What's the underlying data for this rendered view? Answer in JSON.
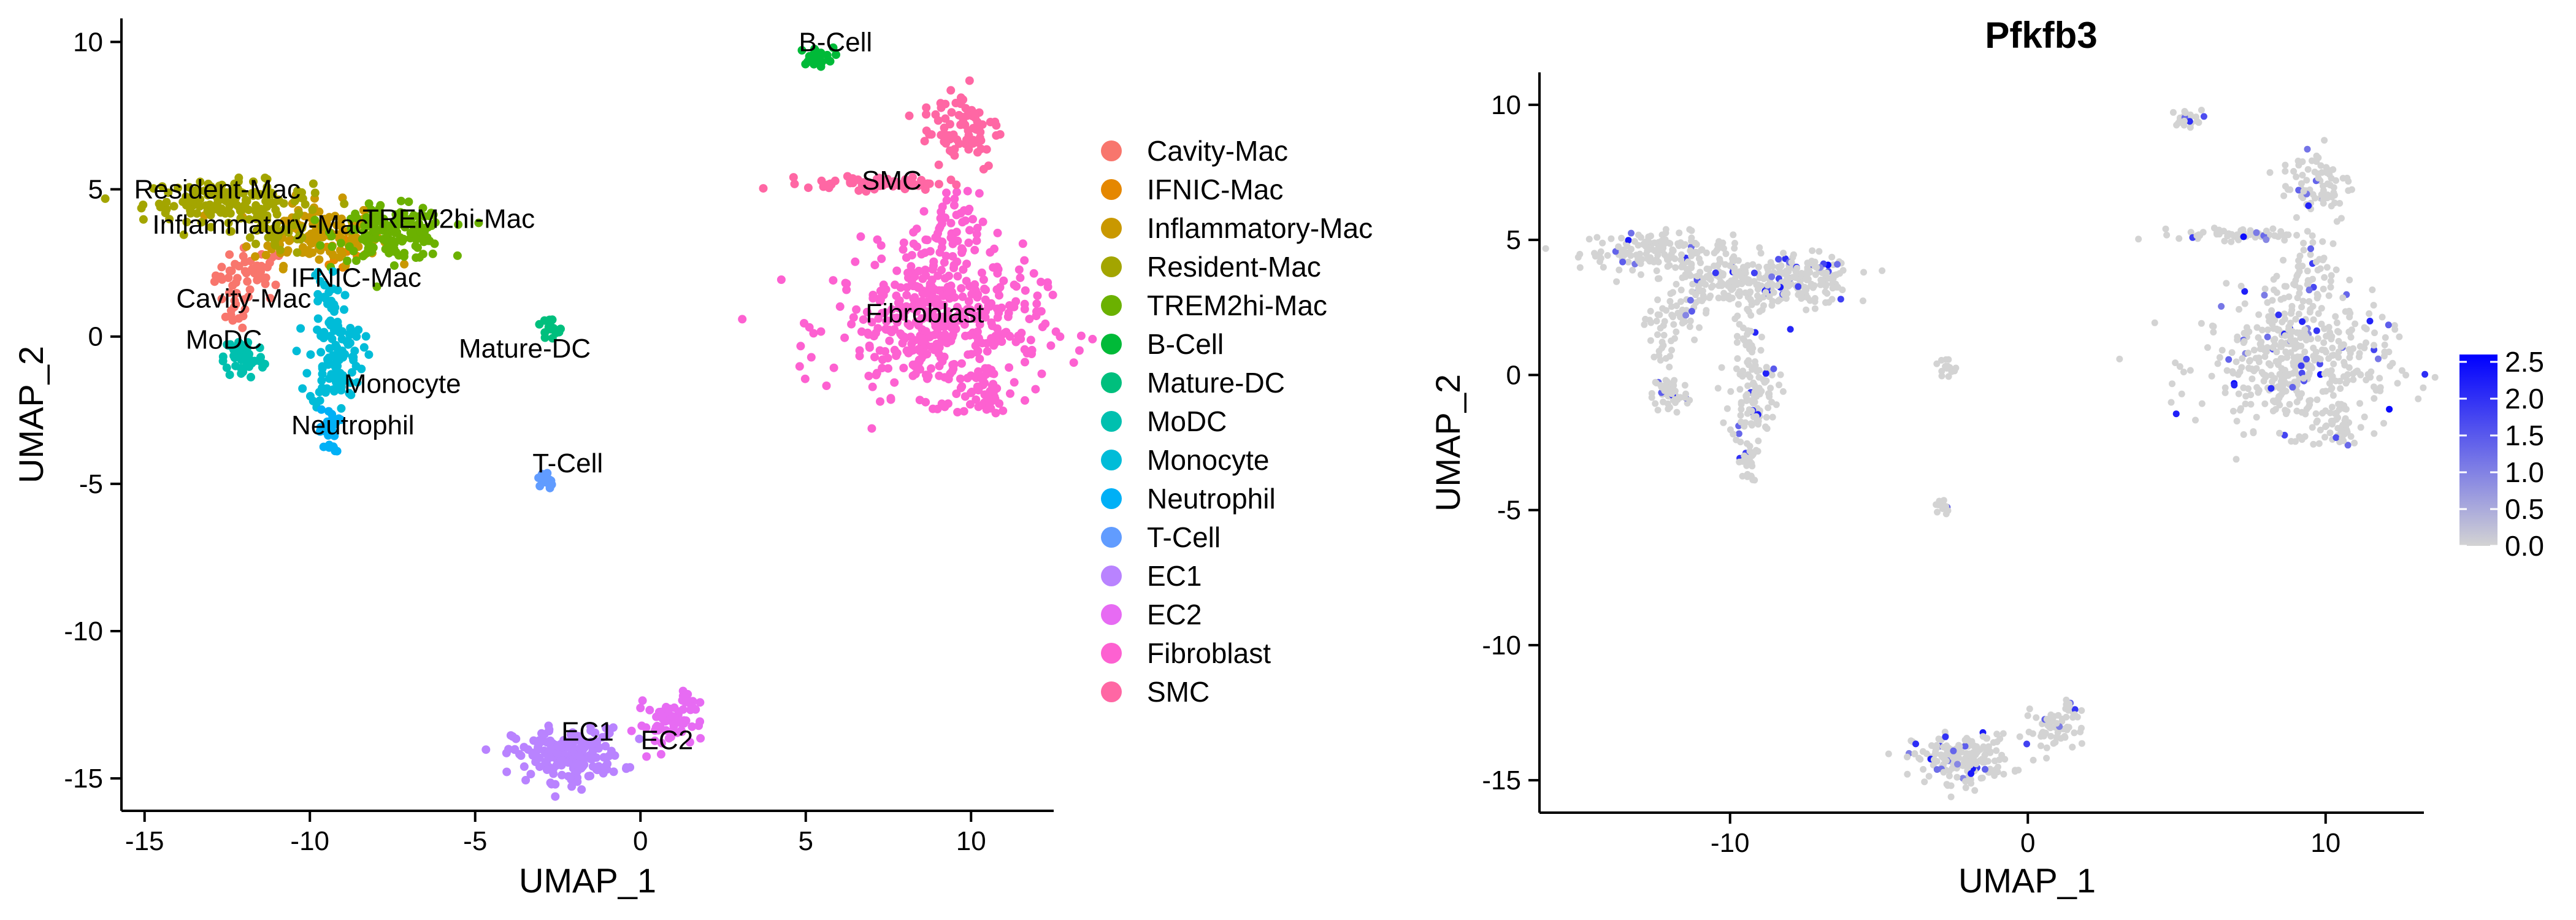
{
  "chart_data": [
    {
      "type": "scatter",
      "title": "",
      "xlabel": "UMAP_1",
      "ylabel": "UMAP_2",
      "xlim": [
        -15.7,
        12.5
      ],
      "ylim": [
        -16.1,
        10.8
      ],
      "xticks": [
        -15,
        -10,
        -5,
        0,
        5,
        10
      ],
      "yticks": [
        -15,
        -10,
        -5,
        0,
        5,
        10
      ],
      "legend_position": "right",
      "series": [
        {
          "name": "Cavity-Mac",
          "color": "#F8766D",
          "label_x": -12.0,
          "label_y": 1.3,
          "blobs": [
            [
              -11.8,
              2.1,
              0.7,
              0.6,
              45
            ],
            [
              -12.2,
              0.9,
              0.3,
              0.4,
              12
            ]
          ]
        },
        {
          "name": "IFNIC-Mac",
          "color": "#E58700",
          "label_x": -8.6,
          "label_y": 2.0,
          "blobs": [
            [
              -9.0,
              2.8,
              0.6,
              0.4,
              14
            ]
          ]
        },
        {
          "name": "Inflammatory-Mac",
          "color": "#C99800",
          "label_x": -11.5,
          "label_y": 3.8,
          "blobs": [
            [
              -9.8,
              3.5,
              1.3,
              0.7,
              140
            ]
          ]
        },
        {
          "name": "Resident-Mac",
          "color": "#A3A500",
          "label_x": -12.8,
          "label_y": 5.0,
          "blobs": [
            [
              -12.5,
              4.6,
              1.7,
              0.45,
              140
            ],
            [
              -11.0,
              3.6,
              0.9,
              0.6,
              40
            ]
          ]
        },
        {
          "name": "TREM2hi-Mac",
          "color": "#6BB100",
          "label_x": -5.8,
          "label_y": 4.0,
          "blobs": [
            [
              -7.5,
              3.5,
              1.1,
              0.6,
              160
            ]
          ]
        },
        {
          "name": "B-Cell",
          "color": "#00BA38",
          "label_x": 5.9,
          "label_y": 10.0,
          "blobs": [
            [
              5.3,
              9.5,
              0.35,
              0.2,
              25
            ]
          ]
        },
        {
          "name": "Mature-DC",
          "color": "#00BF7D",
          "label_x": -3.5,
          "label_y": -0.4,
          "blobs": [
            [
              -2.8,
              0.2,
              0.35,
              0.3,
              14
            ]
          ]
        },
        {
          "name": "MoDC",
          "color": "#00C0AF",
          "label_x": -12.6,
          "label_y": -0.1,
          "blobs": [
            [
              -12.0,
              -0.7,
              0.4,
              0.5,
              60
            ]
          ]
        },
        {
          "name": "Monocyte",
          "color": "#00BCD8",
          "label_x": -7.2,
          "label_y": -1.6,
          "blobs": [
            [
              -9.2,
              -0.7,
              0.55,
              1.2,
              110
            ],
            [
              -9.6,
              1.4,
              0.25,
              0.6,
              18
            ]
          ]
        },
        {
          "name": "Neutrophil",
          "color": "#00B0F6",
          "label_x": -8.7,
          "label_y": -3.0,
          "blobs": [
            [
              -9.4,
              -3.2,
              0.2,
              0.5,
              30
            ]
          ]
        },
        {
          "name": "T-Cell",
          "color": "#619CFF",
          "label_x": -2.2,
          "label_y": -4.3,
          "blobs": [
            [
              -2.9,
              -4.9,
              0.15,
              0.25,
              12
            ]
          ]
        },
        {
          "name": "EC1",
          "color": "#B983FF",
          "label_x": -1.6,
          "label_y": -13.4,
          "blobs": [
            [
              -2.2,
              -14.2,
              1.1,
              0.6,
              190
            ]
          ]
        },
        {
          "name": "EC2",
          "color": "#E76BF3",
          "label_x": 0.8,
          "label_y": -13.7,
          "blobs": [
            [
              0.9,
              -13.2,
              0.7,
              0.5,
              50
            ],
            [
              1.6,
              -12.5,
              0.3,
              0.3,
              15
            ]
          ]
        },
        {
          "name": "Fibroblast",
          "color": "#FD61D1",
          "label_x": 8.6,
          "label_y": 0.8,
          "blobs": [
            [
              9.0,
              0.4,
              2.1,
              1.6,
              420
            ],
            [
              9.2,
              3.2,
              0.7,
              1.1,
              70
            ],
            [
              10.4,
              -1.9,
              0.5,
              0.6,
              40
            ]
          ]
        },
        {
          "name": "SMC",
          "color": "#FF67A4",
          "label_x": 7.6,
          "label_y": 5.3,
          "blobs": [
            [
              7.2,
              5.2,
              1.4,
              0.15,
              60
            ],
            [
              9.7,
              7.1,
              0.8,
              1.0,
              80
            ]
          ]
        }
      ]
    },
    {
      "type": "scatter",
      "title": "Pfkfb3",
      "xlabel": "UMAP_1",
      "ylabel": "UMAP_2",
      "xlim": [
        -16.4,
        13.3
      ],
      "ylim": [
        -16.2,
        11.2
      ],
      "xticks": [
        -10,
        0,
        10
      ],
      "yticks": [
        -15,
        -10,
        -5,
        0,
        5,
        10
      ],
      "colorbar": {
        "ticks": [
          2.5,
          2.0,
          1.5,
          1.0,
          0.5,
          0.0
        ],
        "range": [
          0,
          2.6
        ],
        "low_color": "#D3D3D3",
        "high_color": "#0000FF"
      }
    }
  ]
}
